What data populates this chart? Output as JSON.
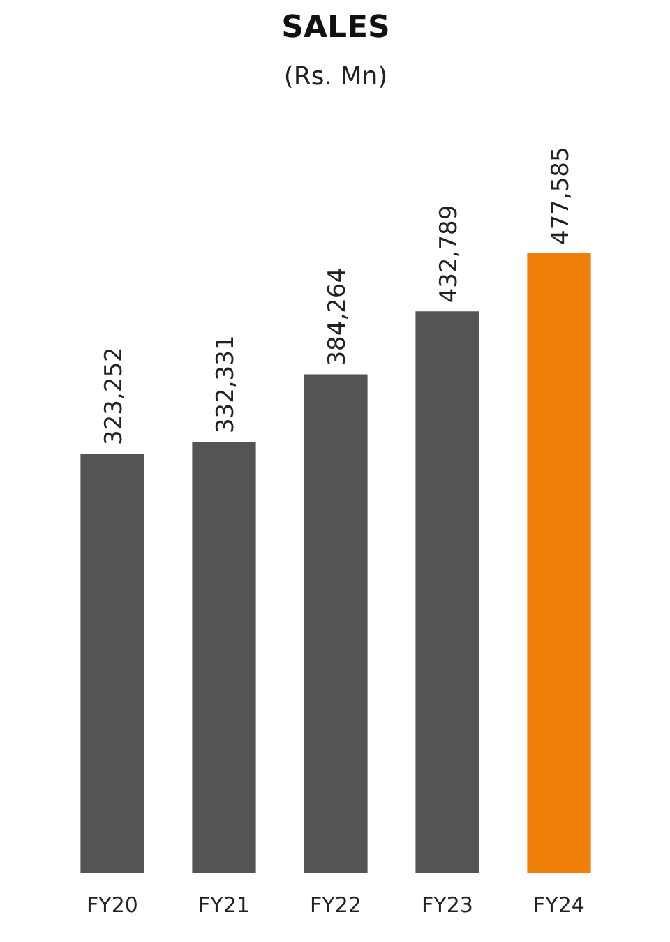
{
  "chart_data": {
    "type": "bar",
    "title": "SALES",
    "subtitle": "(Rs. Mn)",
    "categories": [
      "FY20",
      "FY21",
      "FY22",
      "FY23",
      "FY24"
    ],
    "values": [
      323252,
      332331,
      384264,
      432789,
      477585
    ],
    "colors": [
      "#545454",
      "#545454",
      "#545454",
      "#545454",
      "#f07f09"
    ],
    "value_labels": [
      "323,252",
      "332,331",
      "384,264",
      "432,789",
      "477,585"
    ]
  }
}
